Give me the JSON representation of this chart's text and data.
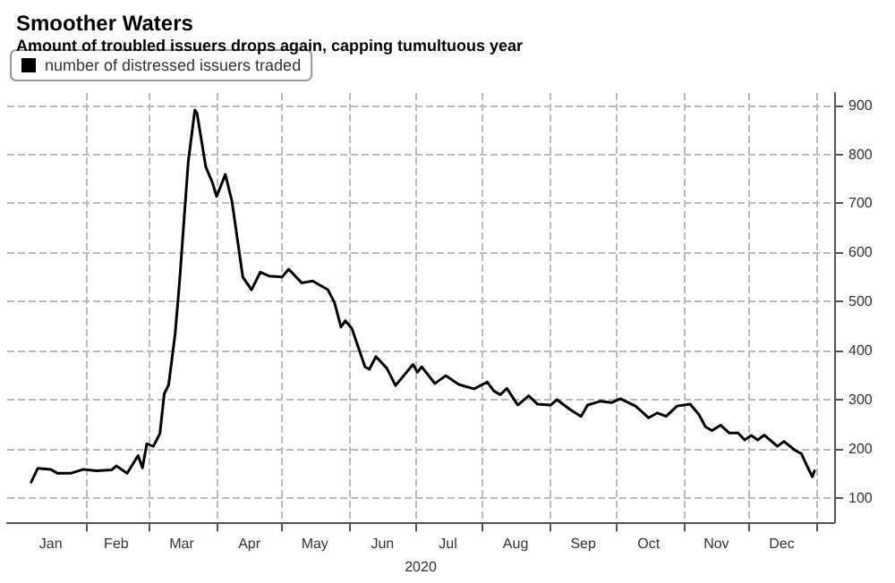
{
  "chart_data": {
    "type": "line",
    "title": "Smoother Waters",
    "subtitle": "Amount of troubled issuers drops again, capping tumultuous year",
    "xlabel": "2020",
    "x": [
      "2020-01-07",
      "2020-01-10",
      "2020-01-16",
      "2020-01-19",
      "2020-01-25",
      "2020-01-31",
      "2020-02-06",
      "2020-02-13",
      "2020-02-15",
      "2020-02-20",
      "2020-02-25",
      "2020-02-27",
      "2020-02-29",
      "2020-03-03",
      "2020-03-06",
      "2020-03-08",
      "2020-03-10",
      "2020-03-13",
      "2020-03-15",
      "2020-03-19",
      "2020-03-22",
      "2020-03-23",
      "2020-03-27",
      "2020-03-30",
      "2020-04-01",
      "2020-04-05",
      "2020-04-08",
      "2020-04-13",
      "2020-04-17",
      "2020-04-21",
      "2020-04-25",
      "2020-05-01",
      "2020-05-04",
      "2020-05-10",
      "2020-05-15",
      "2020-05-22",
      "2020-05-25",
      "2020-05-28",
      "2020-05-30",
      "2020-06-02",
      "2020-06-08",
      "2020-06-10",
      "2020-06-13",
      "2020-06-18",
      "2020-06-22",
      "2020-06-30",
      "2020-07-02",
      "2020-07-04",
      "2020-07-10",
      "2020-07-15",
      "2020-07-21",
      "2020-07-28",
      "2020-08-03",
      "2020-08-06",
      "2020-08-09",
      "2020-08-12",
      "2020-08-17",
      "2020-08-22",
      "2020-08-26",
      "2020-09-01",
      "2020-09-04",
      "2020-09-10",
      "2020-09-15",
      "2020-09-18",
      "2020-09-24",
      "2020-09-29",
      "2020-10-03",
      "2020-10-10",
      "2020-10-16",
      "2020-10-20",
      "2020-10-24",
      "2020-10-29",
      "2020-11-04",
      "2020-11-08",
      "2020-11-11",
      "2020-11-14",
      "2020-11-18",
      "2020-11-22",
      "2020-11-26",
      "2020-11-29",
      "2020-12-02",
      "2020-12-05",
      "2020-12-08",
      "2020-12-14",
      "2020-12-17",
      "2020-12-22",
      "2020-12-25",
      "2020-12-28",
      "2020-12-30",
      "2020-12-31"
    ],
    "series": [
      {
        "name": "number of distressed issuers traded",
        "color": "#000000",
        "values": [
          132,
          160,
          158,
          150,
          150,
          158,
          155,
          157,
          165,
          150,
          186,
          161,
          210,
          205,
          231,
          312,
          330,
          435,
          540,
          785,
          890,
          884,
          775,
          743,
          714,
          759,
          705,
          550,
          524,
          560,
          552,
          550,
          566,
          538,
          542,
          524,
          498,
          448,
          461,
          445,
          367,
          362,
          388,
          364,
          329,
          372,
          356,
          367,
          333,
          349,
          331,
          322,
          336,
          318,
          310,
          323,
          289,
          308,
          291,
          289,
          300,
          280,
          266,
          289,
          297,
          294,
          302,
          287,
          263,
          273,
          266,
          287,
          291,
          270,
          245,
          237,
          248,
          232,
          232,
          218,
          227,
          218,
          228,
          205,
          215,
          197,
          190,
          161,
          143,
          155
        ]
      }
    ],
    "xlim": [
      "2019-12-27",
      "2021-01-09"
    ],
    "xticks": [
      {
        "value": "2020-02-01",
        "label": null
      },
      {
        "value": "2020-03-01",
        "label": null
      },
      {
        "value": "2020-04-01",
        "label": null
      },
      {
        "value": "2020-05-01",
        "label": null
      },
      {
        "value": "2020-06-01",
        "label": null
      },
      {
        "value": "2020-07-01",
        "label": null
      },
      {
        "value": "2020-08-01",
        "label": null
      },
      {
        "value": "2020-09-01",
        "label": null
      },
      {
        "value": "2020-10-01",
        "label": null
      },
      {
        "value": "2020-11-01",
        "label": null
      },
      {
        "value": "2020-12-01",
        "label": null
      },
      {
        "value": "2021-01-01",
        "label": null
      },
      {
        "value": "2020-01-16",
        "label": "Jan"
      },
      {
        "value": "2020-02-15",
        "label": "Feb"
      },
      {
        "value": "2020-03-16",
        "label": "Mar"
      },
      {
        "value": "2020-04-16",
        "label": "Apr"
      },
      {
        "value": "2020-05-16",
        "label": "May"
      },
      {
        "value": "2020-06-16",
        "label": "Jun"
      },
      {
        "value": "2020-07-16",
        "label": "Jul"
      },
      {
        "value": "2020-08-16",
        "label": "Aug"
      },
      {
        "value": "2020-09-16",
        "label": "Sep"
      },
      {
        "value": "2020-10-16",
        "label": "Oct"
      },
      {
        "value": "2020-11-16",
        "label": "Nov"
      },
      {
        "value": "2020-12-16",
        "label": "Dec"
      }
    ],
    "ylim": [
      50,
      925
    ],
    "yticks": [
      100,
      200,
      300,
      400,
      500,
      600,
      700,
      800,
      900
    ],
    "grid": true,
    "legend": "top left",
    "marker": "none",
    "line_style": "solid"
  }
}
